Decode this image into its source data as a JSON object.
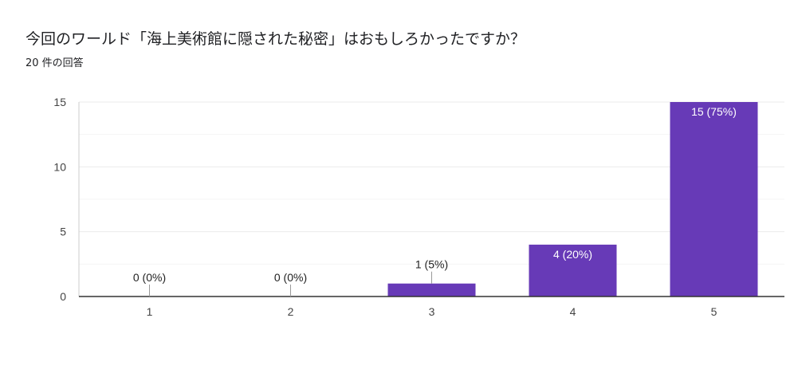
{
  "header": {
    "title": "今回のワールド「海上美術館に隠された秘密」はおもしろかったですか？",
    "response_count": "20 件の回答"
  },
  "colors": {
    "bar": "#673ab7",
    "grid": "#ebebeb",
    "axis": "#333333",
    "label_dark": "#222222",
    "label_light": "#ffffff"
  },
  "chart_data": {
    "type": "bar",
    "categories": [
      "1",
      "2",
      "3",
      "4",
      "5"
    ],
    "values": [
      0,
      0,
      1,
      4,
      15
    ],
    "data_labels": [
      "0 (0%)",
      "0 (0%)",
      "1 (5%)",
      "4 (20%)",
      "15 (75%)"
    ],
    "ylim": [
      0,
      15
    ],
    "yticks": [
      0,
      5,
      10,
      15
    ],
    "ytick_labels": [
      "0",
      "5",
      "10",
      "15"
    ],
    "minor_gridlines": true,
    "legend": "none"
  }
}
